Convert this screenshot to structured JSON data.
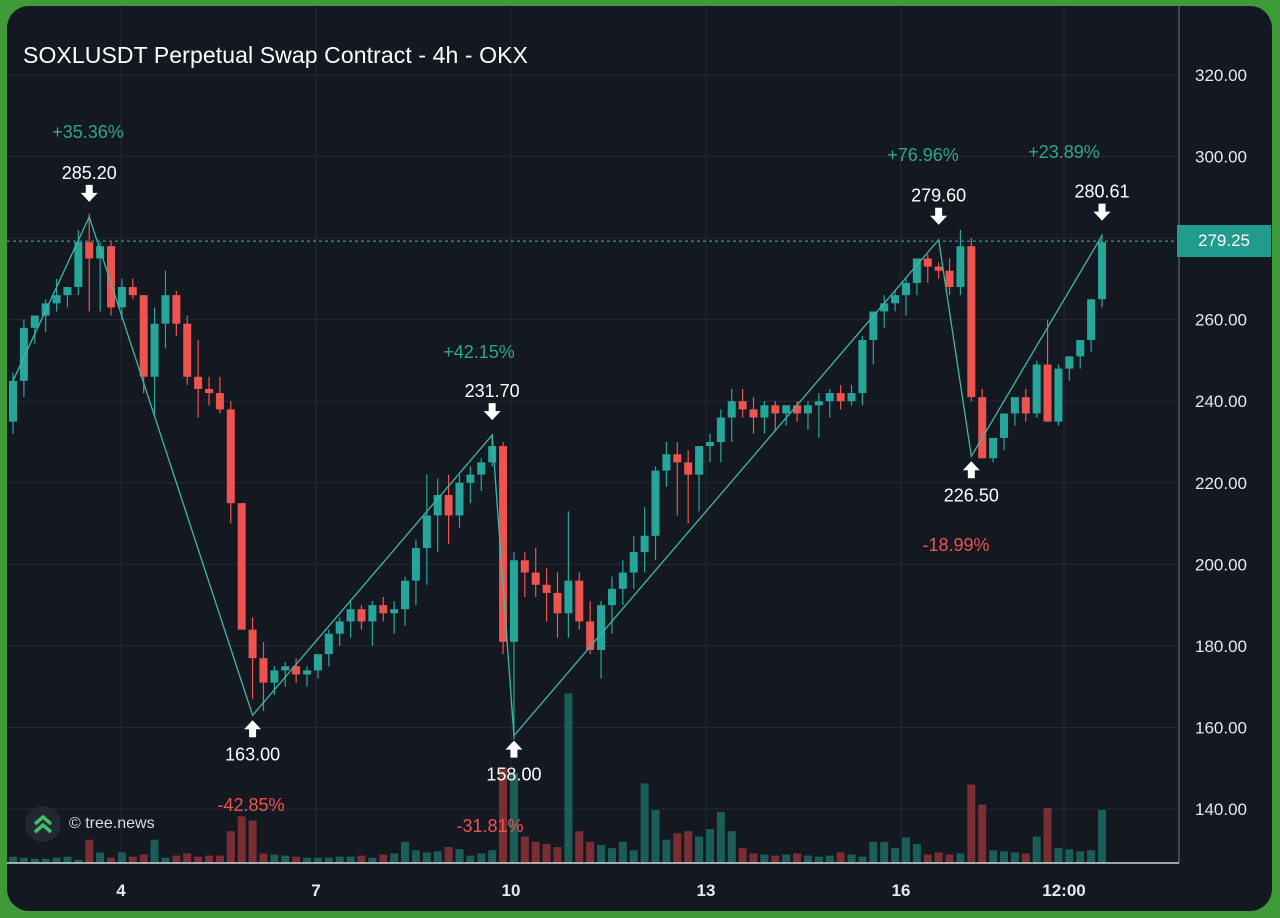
{
  "chart_data": {
    "type": "candlestick",
    "title": "SOXLUSDT Perpetual Swap Contract - 4h - OKX",
    "watermark": "© tree.news",
    "current_price": "279.25",
    "colors": {
      "up": "#26a69a",
      "down": "#ef5350",
      "background": "#141821",
      "grid": "#232836",
      "zigzag": "#3fb8a6"
    },
    "y_axis": {
      "range": [
        128,
        332
      ],
      "ticks": [
        "140.00",
        "160.00",
        "180.00",
        "200.00",
        "220.00",
        "240.00",
        "260.00",
        "280.00",
        "300.00",
        "320.00"
      ]
    },
    "x_axis": {
      "ticks": [
        "4",
        "7",
        "10",
        "13",
        "16",
        "12:00"
      ]
    },
    "candles": [
      [
        235,
        247,
        232,
        245
      ],
      [
        245,
        260,
        241,
        258
      ],
      [
        258,
        261,
        254,
        261
      ],
      [
        261,
        265,
        257,
        264
      ],
      [
        264,
        270,
        262,
        266
      ],
      [
        266,
        268,
        263,
        268
      ],
      [
        268,
        282,
        266,
        279
      ],
      [
        279,
        286,
        262,
        275
      ],
      [
        275,
        279,
        262,
        278
      ],
      [
        278,
        279,
        261,
        263
      ],
      [
        263,
        270,
        260,
        268
      ],
      [
        268,
        270,
        265,
        266
      ],
      [
        266,
        266,
        242,
        246
      ],
      [
        246,
        263,
        236,
        259
      ],
      [
        259,
        272,
        253,
        266
      ],
      [
        266,
        267,
        256,
        259
      ],
      [
        259,
        261,
        244,
        246
      ],
      [
        246,
        255,
        236,
        243
      ],
      [
        243,
        246,
        239,
        242
      ],
      [
        242,
        246,
        237,
        238
      ],
      [
        238,
        240,
        210,
        215
      ],
      [
        215,
        215,
        185,
        184
      ],
      [
        184,
        187,
        167,
        177
      ],
      [
        177,
        181,
        164,
        171
      ],
      [
        171,
        175,
        168,
        174
      ],
      [
        174,
        176,
        170,
        175
      ],
      [
        175,
        177,
        171,
        173
      ],
      [
        173,
        175,
        170,
        174
      ],
      [
        174,
        178,
        172,
        178
      ],
      [
        178,
        184,
        175,
        183
      ],
      [
        183,
        187,
        180,
        186
      ],
      [
        186,
        191,
        182,
        189
      ],
      [
        189,
        190,
        184,
        186
      ],
      [
        186,
        191,
        180,
        190
      ],
      [
        190,
        192,
        186,
        188
      ],
      [
        188,
        191,
        183,
        189
      ],
      [
        189,
        197,
        185,
        196
      ],
      [
        196,
        206,
        190,
        204
      ],
      [
        204,
        222,
        195,
        212
      ],
      [
        212,
        221,
        203,
        217
      ],
      [
        217,
        222,
        205,
        212
      ],
      [
        212,
        222,
        209,
        220
      ],
      [
        220,
        224,
        215,
        222
      ],
      [
        222,
        226,
        218,
        225
      ],
      [
        225,
        232,
        224,
        229
      ],
      [
        229,
        230,
        178,
        181
      ],
      [
        181,
        203,
        157,
        201
      ],
      [
        201,
        203,
        192,
        198
      ],
      [
        198,
        204,
        192,
        195
      ],
      [
        195,
        199,
        186,
        193
      ],
      [
        193,
        198,
        182,
        188
      ],
      [
        188,
        213,
        182,
        196
      ],
      [
        196,
        198,
        184,
        186
      ],
      [
        186,
        191,
        178,
        179
      ],
      [
        179,
        191,
        172,
        190
      ],
      [
        190,
        197,
        183,
        194
      ],
      [
        194,
        201,
        190,
        198
      ],
      [
        198,
        207,
        194,
        203
      ],
      [
        203,
        214,
        198,
        207
      ],
      [
        207,
        224,
        201,
        223
      ],
      [
        223,
        230,
        219,
        227
      ],
      [
        227,
        230,
        212,
        225
      ],
      [
        225,
        228,
        210,
        222
      ],
      [
        222,
        228,
        213,
        229
      ],
      [
        229,
        232,
        225,
        230
      ],
      [
        230,
        238,
        225,
        236
      ],
      [
        236,
        243,
        230,
        240
      ],
      [
        240,
        243,
        236,
        238
      ],
      [
        238,
        241,
        232,
        236
      ],
      [
        236,
        240,
        232,
        239
      ],
      [
        239,
        240,
        233,
        237
      ],
      [
        237,
        239,
        234,
        239
      ],
      [
        239,
        240,
        235,
        237
      ],
      [
        237,
        240,
        233,
        239
      ],
      [
        239,
        242,
        231,
        240
      ],
      [
        240,
        243,
        236,
        242
      ],
      [
        242,
        244,
        238,
        240
      ],
      [
        240,
        244,
        239,
        242
      ],
      [
        242,
        256,
        239,
        255
      ],
      [
        255,
        262,
        249,
        262
      ],
      [
        262,
        266,
        258,
        264
      ],
      [
        264,
        267,
        262,
        266
      ],
      [
        266,
        270,
        261,
        269
      ],
      [
        269,
        275,
        266,
        275
      ],
      [
        275,
        276,
        269,
        273
      ],
      [
        273,
        274,
        270,
        272
      ],
      [
        272,
        275,
        266,
        268
      ],
      [
        268,
        282,
        266,
        278
      ],
      [
        278,
        280,
        240,
        241
      ],
      [
        241,
        243,
        226,
        226
      ],
      [
        226,
        230,
        225,
        231
      ],
      [
        231,
        236,
        228,
        237
      ],
      [
        237,
        240,
        234,
        241
      ],
      [
        241,
        243,
        235,
        237
      ],
      [
        237,
        250,
        236,
        249
      ],
      [
        249,
        260,
        235,
        235
      ],
      [
        235,
        249,
        234,
        248
      ],
      [
        248,
        251,
        245,
        251
      ],
      [
        251,
        255,
        248,
        255
      ],
      [
        255,
        265,
        252,
        265
      ],
      [
        265,
        281,
        263,
        279
      ]
    ],
    "volume": [
      6,
      5,
      4,
      4,
      5,
      6,
      3,
      22,
      10,
      5,
      10,
      6,
      8,
      22,
      5,
      7,
      9,
      6,
      7,
      7,
      30,
      44,
      40,
      9,
      8,
      7,
      6,
      5,
      5,
      5,
      6,
      6,
      7,
      5,
      8,
      9,
      20,
      12,
      10,
      11,
      15,
      13,
      7,
      9,
      12,
      90,
      85,
      25,
      20,
      18,
      15,
      160,
      30,
      20,
      17,
      14,
      20,
      12,
      75,
      50,
      22,
      28,
      30,
      25,
      32,
      48,
      30,
      14,
      9,
      8,
      7,
      8,
      9,
      7,
      6,
      7,
      10,
      8,
      6,
      20,
      20,
      14,
      24,
      18,
      8,
      10,
      8,
      9,
      74,
      55,
      12,
      11,
      10,
      9,
      25,
      52,
      14,
      13,
      11,
      12,
      50
    ],
    "pivots": [
      {
        "label": "285.20",
        "value": 285.2,
        "type": "high"
      },
      {
        "label": "163.00",
        "value": 163.0,
        "type": "low"
      },
      {
        "label": "231.70",
        "value": 231.7,
        "type": "high"
      },
      {
        "label": "158.00",
        "value": 158.0,
        "type": "low"
      },
      {
        "label": "279.60",
        "value": 279.6,
        "type": "high"
      },
      {
        "label": "226.50",
        "value": 226.5,
        "type": "low"
      },
      {
        "label": "280.61",
        "value": 280.61,
        "type": "high"
      }
    ],
    "percent_labels": [
      {
        "text": "+35.36%",
        "color": "up"
      },
      {
        "text": "-42.85%",
        "color": "down"
      },
      {
        "text": "+42.15%",
        "color": "up"
      },
      {
        "text": "-31.81%",
        "color": "down"
      },
      {
        "text": "+76.96%",
        "color": "up"
      },
      {
        "text": "-18.99%",
        "color": "down"
      },
      {
        "text": "+23.89%",
        "color": "up"
      }
    ],
    "grid": true
  },
  "icons": {
    "logo": "tree-news-chevrons-icon",
    "pivot_high": "arrow-down-icon",
    "pivot_low": "arrow-up-icon"
  }
}
